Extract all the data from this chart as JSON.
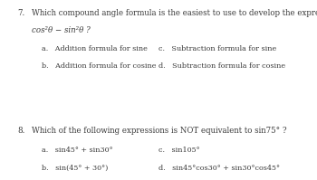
{
  "bg_color": "#ffffff",
  "q7_number": "7.",
  "q7_text": "Which compound angle formula is the easiest to use to develop the expression",
  "q7_expr": "cos²θ − sin²θ ?",
  "q7_a": "a.   Addition formula for sine",
  "q7_b": "b.   Addition formula for cosine",
  "q7_c": "c.   Subtraction formula for sine",
  "q7_d": "d.   Subtraction formula for cosine",
  "q8_number": "8.",
  "q8_text": "Which of the following expressions is NOT equivalent to sin75° ?",
  "q8_a": "a.   sin45° + sin30°",
  "q8_b": "b.   sin(45° + 30°)",
  "q8_c": "c.   sin105°",
  "q8_d": "d.   sin45°cos30° + sin30°cos45°",
  "font_size_q": 6.2,
  "font_size_opt": 5.8,
  "text_color": "#3a3a3a"
}
